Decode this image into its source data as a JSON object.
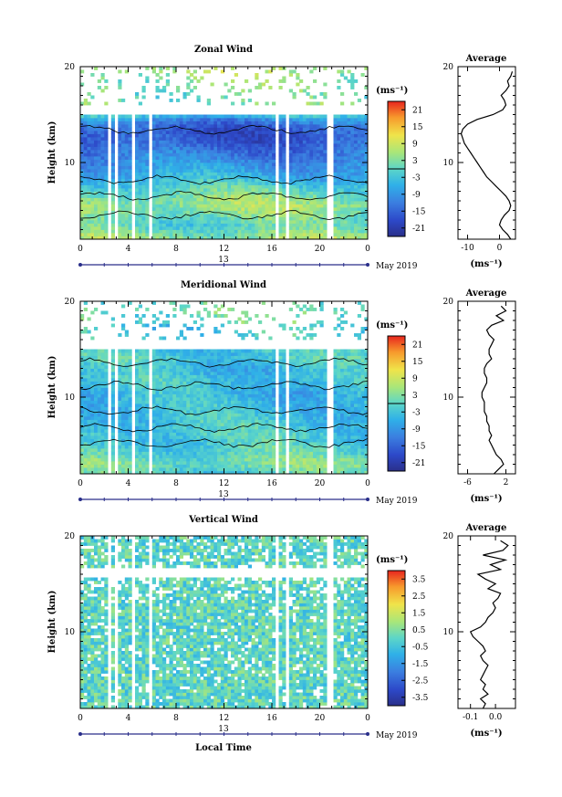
{
  "figure": {
    "date_label": "May 2019",
    "day_label": "13",
    "unit_label": "(ms⁻¹)",
    "xlabel_bottom": "Local Time"
  },
  "chart_data": [
    {
      "type": "heatmap",
      "title": "Zonal Wind",
      "ylabel": "Height (km)",
      "xlim": [
        0,
        24
      ],
      "ylim": [
        2,
        20
      ],
      "x_ticks": [
        "0",
        "4",
        "8",
        "12",
        "16",
        "20",
        "0"
      ],
      "y_ticks": [
        "20",
        "10"
      ],
      "colorbar": {
        "unit": "(ms⁻¹)",
        "ticks": [
          "21",
          "15",
          "9",
          "3",
          "-3",
          "-9",
          "-15",
          "-21"
        ],
        "range": [
          -24,
          24
        ]
      },
      "profile": {
        "title": "Average",
        "xlabel": "(ms⁻¹)",
        "x_ticks": [
          "-10",
          "0"
        ],
        "xlim": [
          -13,
          5
        ],
        "heights": [
          2,
          2.5,
          3,
          3.5,
          4,
          4.5,
          5,
          5.5,
          6,
          6.5,
          7,
          7.5,
          8,
          8.5,
          9,
          9.5,
          10,
          10.5,
          11,
          11.5,
          12,
          12.5,
          13,
          13.5,
          14,
          14.5,
          15,
          15.5,
          16,
          16.5,
          17,
          17.5,
          18,
          18.5,
          19,
          19.5
        ],
        "values": [
          3.5,
          2.5,
          1,
          0,
          0.5,
          1.5,
          3,
          3.5,
          3,
          2,
          0.5,
          -1,
          -2.5,
          -4,
          -5,
          -6,
          -7,
          -8,
          -9,
          -10,
          -11,
          -11.5,
          -12,
          -11.5,
          -10,
          -7,
          -2,
          1,
          2,
          1.5,
          0.5,
          2,
          3,
          2.5,
          3.5,
          4
        ]
      },
      "contour_levels": [
        -24,
        -12,
        0
      ]
    },
    {
      "type": "heatmap",
      "title": "Meridional Wind",
      "ylabel": "Height (km)",
      "xlim": [
        0,
        24
      ],
      "ylim": [
        2,
        20
      ],
      "x_ticks": [
        "0",
        "4",
        "8",
        "12",
        "16",
        "20",
        "0"
      ],
      "y_ticks": [
        "20",
        "10"
      ],
      "colorbar": {
        "unit": "(ms⁻¹)",
        "ticks": [
          "21",
          "15",
          "9",
          "3",
          "-3",
          "-9",
          "-15",
          "-21"
        ],
        "range": [
          -24,
          24
        ]
      },
      "profile": {
        "title": "Average",
        "xlabel": "(ms⁻¹)",
        "x_ticks": [
          "-6",
          "2"
        ],
        "xlim": [
          -8,
          4
        ],
        "heights": [
          2,
          2.5,
          3,
          3.5,
          4,
          4.5,
          5,
          5.5,
          6,
          6.5,
          7,
          7.5,
          8,
          8.5,
          9,
          9.5,
          10,
          10.5,
          11,
          11.5,
          12,
          12.5,
          13,
          13.5,
          14,
          14.5,
          15,
          15.5,
          16,
          16.5,
          17,
          17.5,
          18,
          18.5,
          19,
          19.5
        ],
        "values": [
          -0.5,
          0.5,
          1.5,
          1,
          0,
          -0.5,
          -1,
          -1.5,
          -1,
          -1.5,
          -1.5,
          -2,
          -2,
          -2.5,
          -2.5,
          -2.5,
          -3,
          -3,
          -2.5,
          -2,
          -2,
          -2.5,
          -2.5,
          -2,
          -1,
          -1.5,
          -1.5,
          -1,
          -0.5,
          -1.5,
          -2,
          -1,
          1.5,
          0,
          2,
          1
        ]
      },
      "contour_levels": [
        -6,
        0,
        6
      ]
    },
    {
      "type": "heatmap",
      "title": "Vertical Wind",
      "ylabel": "Height (km)",
      "xlabel": "Local Time",
      "xlim": [
        0,
        24
      ],
      "ylim": [
        2,
        20
      ],
      "x_ticks": [
        "0",
        "4",
        "8",
        "12",
        "16",
        "20",
        "0"
      ],
      "y_ticks": [
        "20",
        "10"
      ],
      "colorbar": {
        "unit": "(ms⁻¹)",
        "ticks": [
          "3.5",
          "2.5",
          "1.5",
          "0.5",
          "-0.5",
          "-1.5",
          "-2.5",
          "-3.5"
        ],
        "range": [
          -4,
          4
        ]
      },
      "profile": {
        "title": "Average",
        "xlabel": "(ms⁻¹)",
        "x_ticks": [
          "-0.1",
          "0.0"
        ],
        "xlim": [
          -0.15,
          0.08
        ],
        "heights": [
          2,
          2.5,
          3,
          3.5,
          4,
          4.5,
          5,
          5.5,
          6,
          6.5,
          7,
          7.5,
          8,
          8.5,
          9,
          9.5,
          10,
          10.5,
          11,
          11.5,
          12,
          12.5,
          13,
          13.5,
          14,
          14.5,
          15,
          15.5,
          16,
          16.5,
          17,
          17.5,
          18,
          18.5,
          19,
          19.5
        ],
        "values": [
          -0.05,
          -0.04,
          -0.06,
          -0.03,
          -0.05,
          -0.04,
          -0.06,
          -0.05,
          -0.04,
          -0.03,
          -0.05,
          -0.06,
          -0.04,
          -0.05,
          -0.07,
          -0.09,
          -0.1,
          -0.06,
          -0.04,
          -0.03,
          -0.01,
          0.0,
          -0.01,
          0.01,
          0.02,
          -0.03,
          0.0,
          -0.04,
          -0.07,
          0.02,
          -0.02,
          0.04,
          -0.05,
          0.03,
          0.05,
          0.02
        ]
      }
    }
  ]
}
